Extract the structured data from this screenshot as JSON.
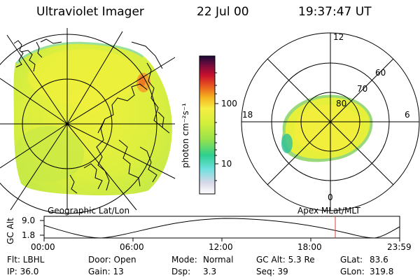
{
  "header": {
    "title": "Ultraviolet Imager",
    "date": "22 Jul 00",
    "time": "19:37:47 UT"
  },
  "colorbar": {
    "unit_label": "photon cm⁻²s⁻¹",
    "ticks": [
      {
        "label": "100",
        "value": 100
      },
      {
        "label": "10",
        "value": 10
      }
    ],
    "colors": [
      "#ffffff",
      "#d8d8e8",
      "#6fe0e0",
      "#2ecf8f",
      "#9be34a",
      "#d6ef3a",
      "#f6ee43",
      "#f5b420",
      "#ea5a1e",
      "#c8102e",
      "#7a0c3c",
      "#1a0a3a"
    ]
  },
  "left_panel": {
    "caption": "Geographic Lat/Lon"
  },
  "right_panel": {
    "caption": "Apex MLat/MLT",
    "mlt_labels": {
      "top": "12",
      "left": "18",
      "right": "6",
      "bottom": "0"
    },
    "lat_labels": [
      "60",
      "70",
      "80"
    ]
  },
  "timeline": {
    "y_axis_label": "GC Alt",
    "y_top": "9.0",
    "y_bottom": "1.8",
    "x_ticks": [
      "00:00",
      "06:00",
      "12:00",
      "18:00",
      "23:59"
    ],
    "marker_color": "#d04040"
  },
  "footer": {
    "flt": "Flt: LBHL",
    "ip": "IP: 36.0",
    "door": "Door: Open",
    "gain": "Gain: 13",
    "mode": "Mode:",
    "mode_val": "Normal",
    "dsp": "Dsp:",
    "dsp_val": "3.3",
    "gcalt": "GC Alt: 5.3 Re",
    "seq": "Seq: 39",
    "glat": "GLat:",
    "glat_val": "83.6",
    "glon": "GLon:",
    "glon_val": "319.8"
  }
}
